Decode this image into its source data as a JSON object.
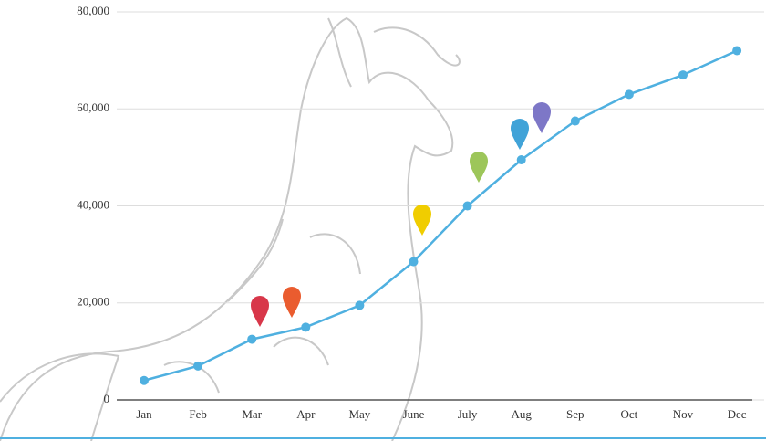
{
  "chart_data": {
    "type": "line",
    "categories": [
      "Jan",
      "Feb",
      "Mar",
      "Apr",
      "May",
      "June",
      "July",
      "Aug",
      "Sep",
      "Oct",
      "Nov",
      "Dec"
    ],
    "series": [
      {
        "color": "#4fb0e0",
        "values": [
          4000,
          7000,
          12500,
          15000,
          19500,
          28500,
          40000,
          49500,
          57500,
          63000,
          67000,
          72000
        ]
      }
    ],
    "ylim": [
      0,
      80000
    ],
    "yticks": [
      0,
      {
        "value": 20000,
        "label": "20,000"
      },
      {
        "value": 40000,
        "label": "40,000"
      },
      {
        "value": 60000,
        "label": "60,000"
      },
      {
        "value": 80000,
        "label": "80,000"
      }
    ],
    "grid": true
  }
}
